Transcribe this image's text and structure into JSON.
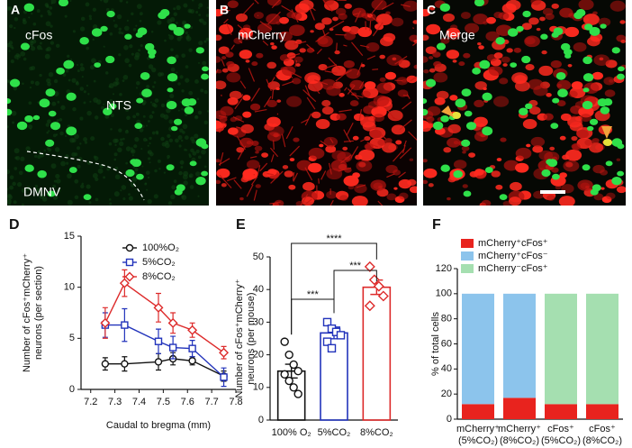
{
  "panels": {
    "letters": [
      "A",
      "B",
      "C",
      "D",
      "E",
      "F"
    ],
    "a_labels": [
      "cFos",
      "NTS",
      "DMNV"
    ],
    "b_label": "mCherry",
    "c_label": "Merge"
  },
  "chart_data": [
    {
      "type": "line",
      "ylabel": [
        "Number of cFos⁺mCherry⁺",
        "neurons (per section)"
      ],
      "xlabel": "Caudal to bregma (mm)",
      "x": [
        7.26,
        7.34,
        7.48,
        7.54,
        7.62,
        7.75
      ],
      "xlim": [
        7.16,
        7.8
      ],
      "xticks": [
        7.2,
        7.3,
        7.4,
        7.5,
        7.6,
        7.7,
        7.8
      ],
      "ylim": [
        0,
        15
      ],
      "yticks": [
        0,
        5,
        10,
        15
      ],
      "legend": "upper right",
      "series": [
        {
          "name": "100%O₂",
          "color": "#111111",
          "marker": "circle",
          "values": [
            2.5,
            2.5,
            2.7,
            3.0,
            2.8,
            1.3
          ],
          "errors": [
            0.6,
            0.7,
            0.8,
            0.6,
            0.4,
            0.5
          ]
        },
        {
          "name": "5%CO₂",
          "color": "#2233bb",
          "marker": "square",
          "values": [
            6.3,
            6.3,
            4.7,
            4.1,
            4.0,
            1.2
          ],
          "errors": [
            1.2,
            1.6,
            1.2,
            1.1,
            0.8,
            0.9
          ]
        },
        {
          "name": "8%CO₂",
          "color": "#dd2a2a",
          "marker": "diamond",
          "values": [
            6.5,
            10.4,
            8.0,
            6.5,
            5.8,
            3.6
          ],
          "errors": [
            1.5,
            1.3,
            1.4,
            1.0,
            0.7,
            0.6
          ]
        }
      ]
    },
    {
      "type": "bar",
      "ylabel": [
        "Number of cFos⁺mCherry⁺",
        "neurons (per mouse)"
      ],
      "categories": [
        "100% O₂",
        "5%CO₂",
        "8%CO₂"
      ],
      "colors": [
        "#111111",
        "#2233bb",
        "#dd2a2a"
      ],
      "values": [
        15,
        26.7,
        40.7
      ],
      "errors": [
        2.1,
        1.8,
        2.2
      ],
      "points": [
        [
          24,
          20,
          17,
          15,
          14,
          12,
          10,
          8
        ],
        [
          30,
          28,
          27,
          26,
          24,
          22
        ],
        [
          47,
          43,
          41,
          38,
          35
        ]
      ],
      "ylim": [
        0,
        50
      ],
      "yticks": [
        0,
        10,
        20,
        30,
        40,
        50
      ],
      "significance": [
        "****",
        "***",
        "***"
      ]
    },
    {
      "type": "stacked-bar",
      "ylabel": "% of total cells",
      "categories": [
        [
          "mCherry⁺",
          "(5%CO₂)"
        ],
        [
          "mCherry⁺",
          "(8%CO₂)"
        ],
        [
          "cFos⁺",
          "(5%CO₂)"
        ],
        [
          "cFos⁺",
          "(8%CO₂)"
        ]
      ],
      "ylim": [
        0,
        120
      ],
      "yticks": [
        0,
        20,
        40,
        60,
        80,
        100,
        120
      ],
      "legend": "top",
      "series": [
        {
          "name": "mCherry⁺cFos⁺",
          "color": "#e8231e",
          "values": [
            12,
            17,
            12,
            12
          ]
        },
        {
          "name": "mCherry⁺cFos⁻",
          "color": "#8cc4ec",
          "values": [
            88,
            83,
            0,
            0
          ]
        },
        {
          "name": "mCherry⁻cFos⁺",
          "color": "#a5dfb0",
          "values": [
            0,
            0,
            88,
            88
          ]
        }
      ]
    }
  ]
}
